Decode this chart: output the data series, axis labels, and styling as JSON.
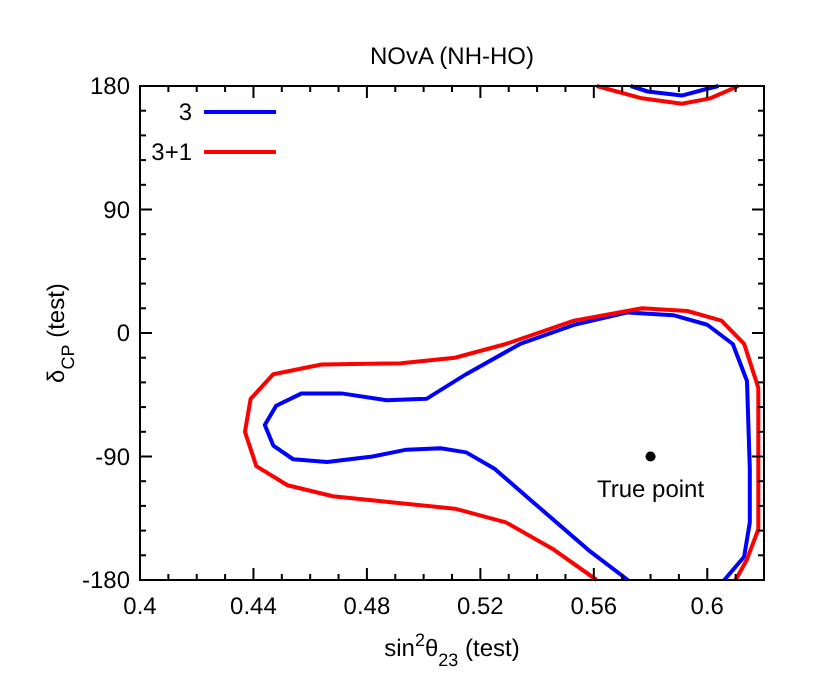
{
  "chart_data": {
    "type": "line",
    "title": "NOvA (NH-HO)",
    "xlabel": "sin$^{2}$θ$_{23}$ (test)",
    "ylabel": "δ$_{CP}$ (test)",
    "xlim": [
      0.4,
      0.62
    ],
    "ylim": [
      -180,
      180
    ],
    "xticks": [
      0.4,
      {
        "value": 0.41,
        "label": null
      },
      {
        "value": 0.42,
        "label": null
      },
      {
        "value": 0.43,
        "label": null
      },
      0.44,
      {
        "value": 0.45,
        "label": null
      },
      {
        "value": 0.46,
        "label": null
      },
      {
        "value": 0.47,
        "label": null
      },
      0.48,
      {
        "value": 0.49,
        "label": null
      },
      {
        "value": 0.5,
        "label": null
      },
      {
        "value": 0.51,
        "label": null
      },
      0.52,
      {
        "value": 0.53,
        "label": null
      },
      {
        "value": 0.54,
        "label": null
      },
      {
        "value": 0.55,
        "label": null
      },
      0.56,
      {
        "value": 0.57,
        "label": null
      },
      {
        "value": 0.58,
        "label": null
      },
      {
        "value": 0.59,
        "label": null
      },
      0.6,
      {
        "value": 0.61,
        "label": null
      }
    ],
    "yticks": [
      -180,
      {
        "value": -162,
        "label": null
      },
      {
        "value": -144,
        "label": null
      },
      {
        "value": -126,
        "label": null
      },
      {
        "value": -108,
        "label": null
      },
      -90,
      {
        "value": -72,
        "label": null
      },
      {
        "value": -54,
        "label": null
      },
      {
        "value": -36,
        "label": null
      },
      {
        "value": -18,
        "label": null
      },
      0,
      {
        "value": 18,
        "label": null
      },
      {
        "value": 36,
        "label": null
      },
      {
        "value": 54,
        "label": null
      },
      {
        "value": 72,
        "label": null
      },
      90,
      {
        "value": 108,
        "label": null
      },
      {
        "value": 126,
        "label": null
      },
      {
        "value": 144,
        "label": null
      },
      {
        "value": 162,
        "label": null
      },
      180
    ],
    "grid": false,
    "legend": "top left",
    "line_style": "solid",
    "marker": "none",
    "series": [
      {
        "name": "3",
        "color": "#0000ff",
        "x": [
          0.572,
          0.558,
          0.539,
          0.525,
          0.515,
          0.506,
          0.494,
          0.482,
          0.466,
          0.454,
          0.447,
          0.444,
          0.448,
          0.457,
          0.471,
          0.487,
          0.501,
          0.515,
          0.534,
          0.553,
          0.572,
          0.588,
          0.6,
          0.609,
          0.614,
          0.615,
          0.615,
          0.613,
          0.606,
          0.59,
          0.573,
          0.579,
          0.591,
          0.6,
          0.604
        ],
        "values": [
          -180,
          -158,
          -124,
          -99,
          -87,
          -84,
          -85,
          -90,
          -94,
          -92,
          -82,
          -67,
          -53,
          -44,
          -44,
          -49,
          -48,
          -30,
          -8,
          6,
          15,
          13,
          6,
          -8,
          -35,
          -99,
          -138,
          -163,
          -180,
          null,
          180,
          176,
          173,
          178,
          180
        ]
      },
      {
        "name": "3+1",
        "color": "#ff0000",
        "x": [
          0.561,
          0.546,
          0.529,
          0.511,
          0.492,
          0.468,
          0.452,
          0.441,
          0.437,
          0.439,
          0.447,
          0.464,
          0.492,
          0.511,
          0.529,
          0.553,
          0.577,
          0.593,
          0.605,
          0.613,
          0.618,
          0.618,
          0.618,
          0.614,
          0.61,
          0.59,
          0.561,
          0.577,
          0.591,
          0.601,
          0.611
        ],
        "values": [
          -180,
          -158,
          -138,
          -128,
          -124,
          -119,
          -111,
          -97,
          -72,
          -48,
          -30,
          -23,
          -22,
          -18,
          -8,
          9,
          18,
          16,
          9,
          -8,
          -40,
          -99,
          -143,
          -165,
          -180,
          null,
          180,
          171,
          167,
          171,
          180
        ]
      },
      {
        "type": "scatter",
        "color": "#000000",
        "marker": "circle",
        "x": [
          0.58
        ],
        "values": [
          -90
        ]
      }
    ],
    "annotations": [
      {
        "text": "True point",
        "x": 0.58,
        "y": -90
      }
    ]
  }
}
